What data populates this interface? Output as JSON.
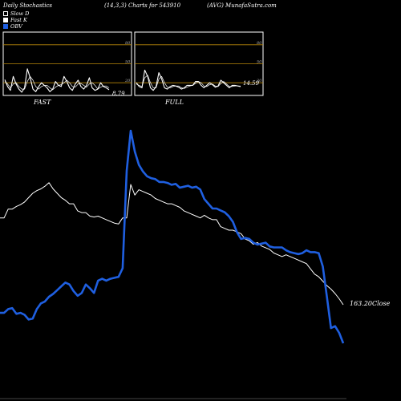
{
  "header": {
    "left": "Daily Stochastics",
    "center": "(14,3,3) Charts for 543910",
    "right": "(AVG) MunafaSutra.com"
  },
  "legend": [
    {
      "label": "Slow  D",
      "key": "slow"
    },
    {
      "label": "Fast K",
      "key": "fast"
    },
    {
      "label": "OBV",
      "key": "obv"
    }
  ],
  "colors": {
    "background": "#000000",
    "price": "#ffffff",
    "obv": "#1f5fe0",
    "level_line": "#b8860b",
    "panel_border": "#ffffff"
  },
  "chart_data": [
    {
      "type": "line",
      "title": "FAST",
      "ylim": [
        0,
        100
      ],
      "yticks": [
        20,
        50,
        80
      ],
      "last_value_label": "8.79",
      "series": [
        {
          "name": "Fast K",
          "values": [
            25,
            14,
            8,
            30,
            18,
            10,
            5,
            12,
            42,
            28,
            10,
            6,
            14,
            20,
            16,
            12,
            6,
            10,
            22,
            16,
            14,
            30,
            22,
            12,
            8,
            18,
            24,
            14,
            10,
            16,
            28,
            12,
            8,
            10,
            20,
            14,
            12,
            9
          ]
        },
        {
          "name": "Slow  D",
          "values": [
            22,
            18,
            12,
            18,
            20,
            14,
            10,
            10,
            22,
            30,
            24,
            14,
            10,
            14,
            16,
            16,
            12,
            9,
            13,
            16,
            17,
            20,
            24,
            20,
            14,
            13,
            18,
            19,
            16,
            13,
            18,
            20,
            16,
            10,
            13,
            15,
            15,
            12
          ]
        }
      ]
    },
    {
      "type": "line",
      "title": "FULL",
      "ylim": [
        0,
        100
      ],
      "yticks": [
        20,
        50,
        80
      ],
      "last_value_label": "14.59",
      "series": [
        {
          "name": "Fast K",
          "values": [
            20,
            14,
            12,
            40,
            30,
            12,
            8,
            14,
            36,
            26,
            12,
            10,
            14,
            16,
            15,
            13,
            10,
            12,
            16,
            16,
            16,
            22,
            22,
            16,
            12,
            16,
            20,
            17,
            13,
            15,
            24,
            20,
            16,
            12,
            16,
            16,
            15,
            14
          ]
        },
        {
          "name": "Slow  D",
          "values": [
            18,
            16,
            14,
            28,
            32,
            20,
            12,
            12,
            26,
            30,
            20,
            13,
            12,
            14,
            15,
            15,
            12,
            11,
            13,
            15,
            16,
            19,
            22,
            20,
            15,
            14,
            17,
            18,
            15,
            14,
            19,
            22,
            18,
            14,
            14,
            15,
            15,
            15
          ]
        }
      ]
    },
    {
      "type": "line",
      "title": "",
      "price_label": "163.20Close",
      "series": [
        {
          "name": "Close",
          "values": [
            262,
            262,
            272,
            272,
            275,
            277,
            280,
            285,
            290,
            293,
            295,
            298,
            302,
            295,
            290,
            285,
            282,
            278,
            278,
            270,
            268,
            268,
            264,
            263,
            264,
            262,
            260,
            258,
            256,
            255,
            262,
            262,
            300,
            288,
            294,
            292,
            290,
            288,
            284,
            282,
            280,
            278,
            278,
            276,
            274,
            270,
            268,
            266,
            264,
            262,
            265,
            262,
            260,
            260,
            252,
            250,
            248,
            248,
            246,
            244,
            238,
            236,
            232,
            234,
            230,
            228,
            226,
            222,
            220,
            218,
            220,
            218,
            216,
            214,
            212,
            210,
            204,
            198,
            195,
            190,
            185,
            181,
            176,
            170,
            163.2
          ]
        },
        {
          "name": "OBV",
          "values": [
            148,
            148,
            152,
            153,
            147,
            148,
            146,
            141,
            142,
            152,
            158,
            160,
            165,
            168,
            172,
            176,
            180,
            178,
            171,
            166,
            169,
            178,
            174,
            169,
            182,
            184,
            182,
            184,
            185,
            186,
            195,
            298,
            340,
            318,
            304,
            297,
            292,
            290,
            289,
            286,
            286,
            285,
            283,
            284,
            280,
            281,
            282,
            280,
            281,
            278,
            268,
            263,
            258,
            258,
            256,
            254,
            250,
            244,
            233,
            226,
            227,
            226,
            222,
            220,
            221,
            222,
            218,
            217,
            217,
            217,
            214,
            212,
            211,
            210,
            211,
            214,
            212,
            212,
            211,
            197,
            165,
            132,
            134,
            127,
            116
          ]
        }
      ]
    }
  ]
}
